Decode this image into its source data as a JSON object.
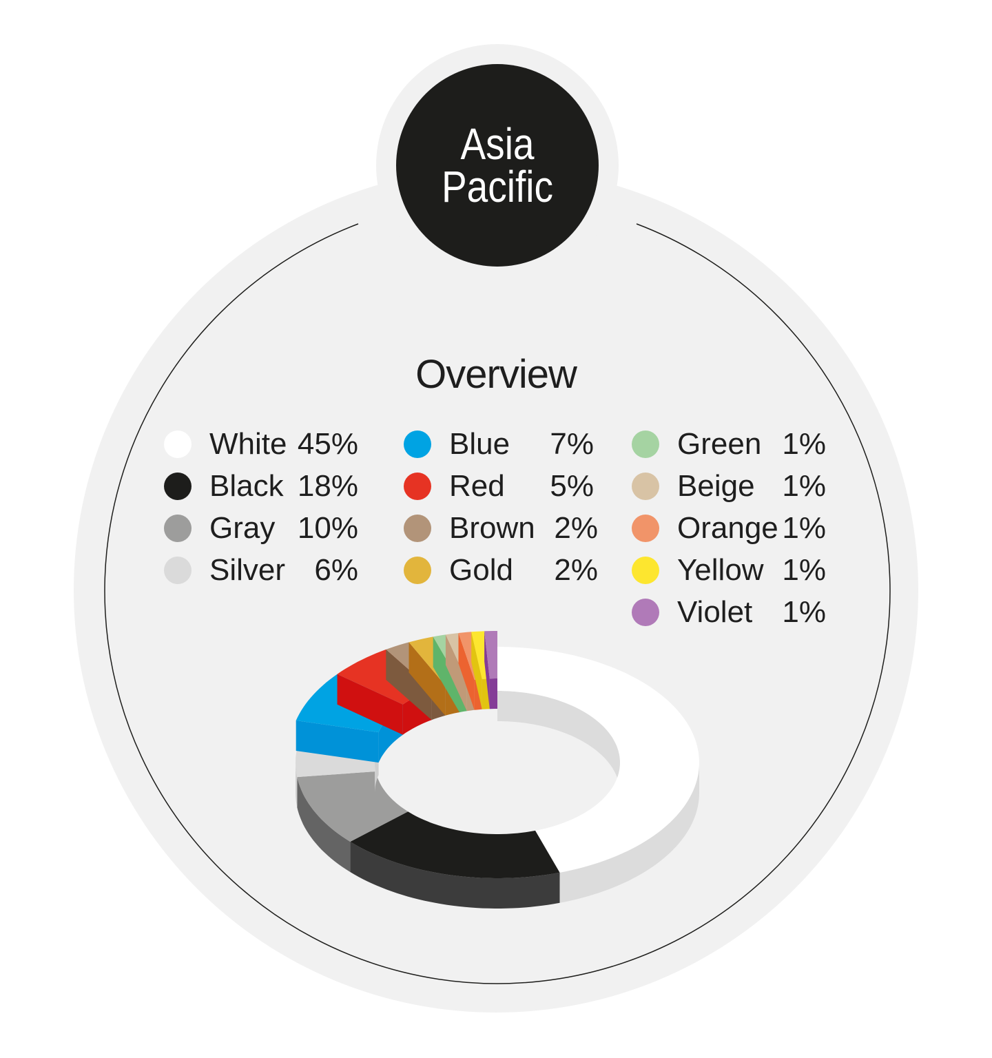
{
  "header": {
    "region_line1": "Asia",
    "region_line2": "Pacific"
  },
  "chart_data": {
    "type": "pie",
    "style": "3d-donut",
    "title": "Overview",
    "unit": "%",
    "legend_placement": "top",
    "categories": [
      "White",
      "Black",
      "Gray",
      "Silver",
      "Blue",
      "Red",
      "Brown",
      "Gold",
      "Green",
      "Beige",
      "Orange",
      "Yellow",
      "Violet"
    ],
    "values": [
      45,
      18,
      10,
      6,
      7,
      5,
      2,
      2,
      1,
      1,
      1,
      1,
      1
    ],
    "labels": [
      "45%",
      "18%",
      "10%",
      "6%",
      "7%",
      "5%",
      "2%",
      "2%",
      "1%",
      "1%",
      "1%",
      "1%",
      "1%"
    ],
    "colors": [
      "#ffffff",
      "#1d1d1b",
      "#9d9d9c",
      "#dadada",
      "#00a3e3",
      "#e63323",
      "#b29479",
      "#e2b53c",
      "#a5d3a2",
      "#d8c3a5",
      "#f19469",
      "#fde62f",
      "#b07ab8"
    ],
    "side_colors": [
      "#dcdcdc",
      "#3c3c3c",
      "#646464",
      "#cfcfcf",
      "#0092d8",
      "#d01010",
      "#7d5a3e",
      "#b36f18",
      "#5fb46a",
      "#c09a78",
      "#ec6330",
      "#e2c410",
      "#843c97"
    ],
    "raised": [
      false,
      false,
      false,
      false,
      true,
      true,
      true,
      true,
      true,
      true,
      true,
      true,
      true
    ]
  },
  "colors": {
    "background": "#f1f1f1",
    "badge": "#1d1d1b"
  }
}
